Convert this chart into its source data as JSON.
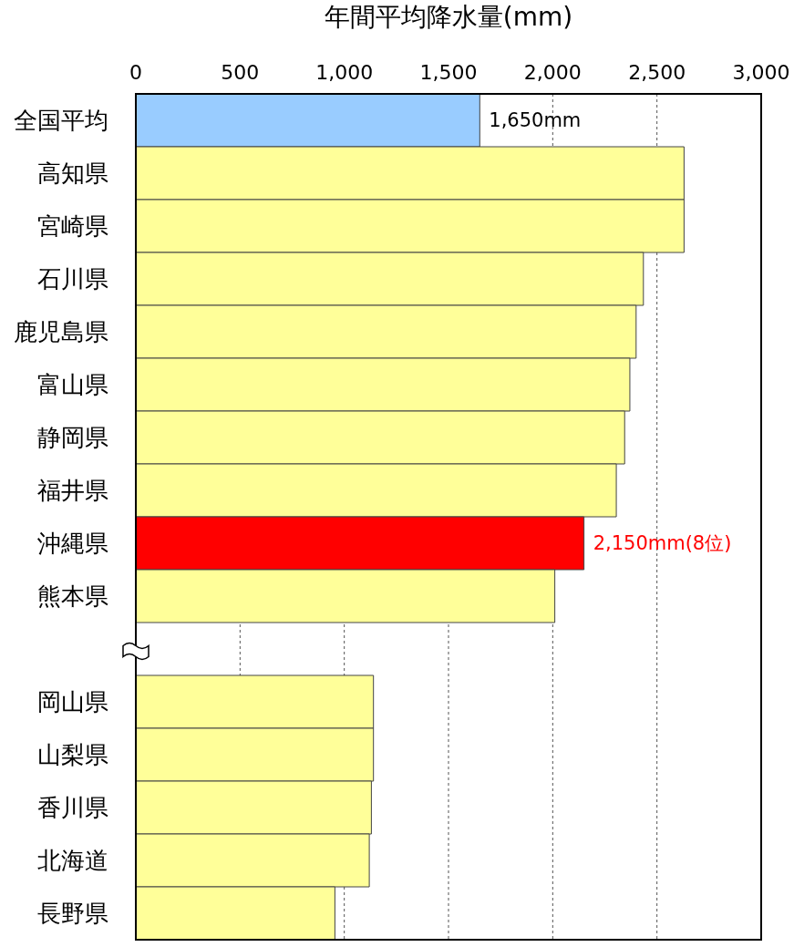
{
  "chart_data": {
    "type": "bar",
    "orientation": "horizontal",
    "xlabel": "年間平均降水量(mm)",
    "categories": [
      "全国平均",
      "高知県",
      "宮崎県",
      "石川県",
      "鹿児島県",
      "富山県",
      "静岡県",
      "福井県",
      "沖縄県",
      "熊本県",
      null,
      "岡山県",
      "山梨県",
      "香川県",
      "北海道",
      "長野県"
    ],
    "values": [
      1650,
      2630,
      2630,
      2435,
      2400,
      2370,
      2345,
      2305,
      2150,
      2010,
      null,
      1140,
      1140,
      1130,
      1120,
      955
    ],
    "colors": [
      "#99ccff",
      "#ffff99",
      "#ffff99",
      "#ffff99",
      "#ffff99",
      "#ffff99",
      "#ffff99",
      "#ffff99",
      "#ff0000",
      "#ffff99",
      null,
      "#ffff99",
      "#ffff99",
      "#ffff99",
      "#ffff99",
      "#ffff99"
    ],
    "value_labels": [
      "1,650mm",
      null,
      null,
      null,
      null,
      null,
      null,
      null,
      "2,150mm(8位)",
      null,
      null,
      null,
      null,
      null,
      null,
      null
    ],
    "xlim": [
      0,
      3000
    ],
    "xticks": [
      0,
      500,
      {
        "value": 1000,
        "label": "1,000"
      },
      {
        "value": 1500,
        "label": "1,500"
      },
      {
        "value": 2000,
        "label": "2,000"
      },
      {
        "value": 2500,
        "label": "2,500"
      },
      {
        "value": 3000,
        "label": "3,000"
      }
    ],
    "grid": "x",
    "legend": false
  }
}
